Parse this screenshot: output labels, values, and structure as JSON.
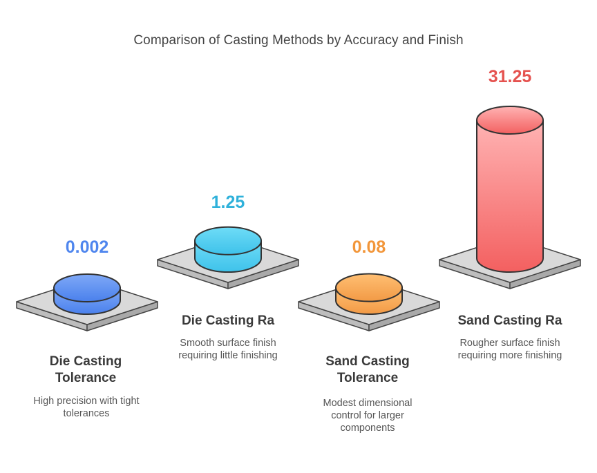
{
  "chart_data": {
    "type": "bar",
    "title": "Comparison of Casting Methods by Accuracy and Finish",
    "categories": [
      "Die Casting Tolerance",
      "Die Casting Ra",
      "Sand Casting Tolerance",
      "Sand Casting Ra"
    ],
    "values": [
      0.002,
      1.25,
      0.08,
      31.25
    ],
    "value_labels": [
      "0.002",
      "1.25",
      "0.08",
      "31.25"
    ],
    "descriptions": [
      "High precision with tight tolerances",
      "Smooth surface finish requiring little finishing",
      "Modest dimensional control for larger components",
      "Rougher surface finish requiring more finishing"
    ],
    "colors": [
      "#4f86ee",
      "#2fb1da",
      "#f2963a",
      "#e5524f"
    ],
    "ylim": [
      0,
      31.25
    ]
  }
}
